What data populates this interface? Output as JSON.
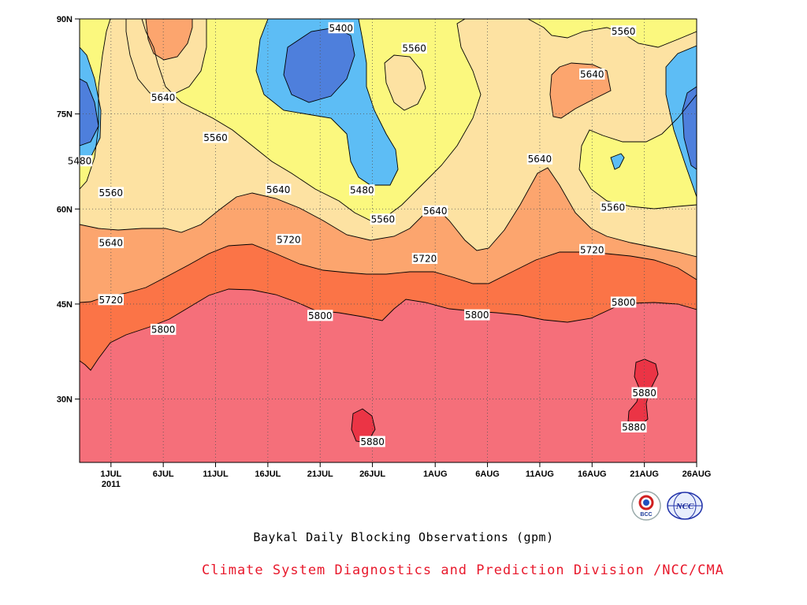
{
  "title": "Baykal Daily Blocking Observations (gpm)",
  "credit": "Climate System Diagnostics and Prediction Division /NCC/CMA",
  "logos": {
    "left": "BCC",
    "right": "NCC"
  },
  "colors": {
    "lt5400": "#4e7fdc",
    "5400_5480": "#5dbdf5",
    "5480_5560": "#fbf87e",
    "5560_5640": "#fde2a2",
    "5640_5720": "#fca56e",
    "5720_5800": "#fb7447",
    "5800_5880": "#f56f7a",
    "gt5880": "#eb3445",
    "credit": "#e8192c"
  },
  "chart_data": {
    "type": "contour",
    "title": "Baykal Daily Blocking Observations (gpm)",
    "x_axis": {
      "type": "date",
      "range": [
        "2011-06-28",
        "2011-08-26"
      ],
      "ticks": [
        {
          "date": "2011-07-01",
          "label": "1JUL",
          "sublabel": "2011"
        },
        {
          "date": "2011-07-06",
          "label": "6JUL"
        },
        {
          "date": "2011-07-11",
          "label": "11JUL"
        },
        {
          "date": "2011-07-16",
          "label": "16JUL"
        },
        {
          "date": "2011-07-21",
          "label": "21JUL"
        },
        {
          "date": "2011-07-26",
          "label": "26JUL"
        },
        {
          "date": "2011-08-01",
          "label": "1AUG"
        },
        {
          "date": "2011-08-06",
          "label": "6AUG"
        },
        {
          "date": "2011-08-11",
          "label": "11AUG"
        },
        {
          "date": "2011-08-16",
          "label": "16AUG"
        },
        {
          "date": "2011-08-21",
          "label": "21AUG"
        },
        {
          "date": "2011-08-26",
          "label": "26AUG"
        }
      ]
    },
    "y_axis": {
      "range": [
        20,
        90
      ],
      "ticks": [
        {
          "value": 30,
          "label": "30N"
        },
        {
          "value": 45,
          "label": "45N"
        },
        {
          "value": 60,
          "label": "60N"
        },
        {
          "value": 75,
          "label": "75N"
        },
        {
          "value": 90,
          "label": "90N"
        }
      ]
    },
    "grid": true,
    "contour_levels": [
      5400,
      5480,
      5560,
      5640,
      5720,
      5800,
      5880
    ],
    "contour_labels": [
      {
        "text": "5400",
        "date": "2011-07-23",
        "lat": 88.6
      },
      {
        "text": "5560",
        "date": "2011-07-30",
        "lat": 85.4
      },
      {
        "text": "5560",
        "date": "2011-08-19",
        "lat": 88.1
      },
      {
        "text": "5640",
        "date": "2011-07-06",
        "lat": 77.6
      },
      {
        "text": "5640",
        "date": "2011-08-16",
        "lat": 81.3
      },
      {
        "text": "5560",
        "date": "2011-07-11",
        "lat": 71.3
      },
      {
        "text": "5480",
        "date": "2011-06-28",
        "lat": 67.6
      },
      {
        "text": "5640",
        "date": "2011-08-11",
        "lat": 67.9
      },
      {
        "text": "5560",
        "date": "2011-07-01",
        "lat": 62.6
      },
      {
        "text": "5640",
        "date": "2011-07-17",
        "lat": 63.1
      },
      {
        "text": "5480",
        "date": "2011-07-25",
        "lat": 63.0
      },
      {
        "text": "5640",
        "date": "2011-08-01",
        "lat": 59.7
      },
      {
        "text": "5560",
        "date": "2011-07-27",
        "lat": 58.4
      },
      {
        "text": "5560",
        "date": "2011-08-18",
        "lat": 60.3
      },
      {
        "text": "5640",
        "date": "2011-07-01",
        "lat": 54.7
      },
      {
        "text": "5720",
        "date": "2011-07-18",
        "lat": 55.2
      },
      {
        "text": "5720",
        "date": "2011-07-31",
        "lat": 52.2
      },
      {
        "text": "5720",
        "date": "2011-08-16",
        "lat": 53.6
      },
      {
        "text": "5720",
        "date": "2011-07-01",
        "lat": 45.7
      },
      {
        "text": "5800",
        "date": "2011-07-06",
        "lat": 41.0
      },
      {
        "text": "5800",
        "date": "2011-07-21",
        "lat": 43.2
      },
      {
        "text": "5800",
        "date": "2011-08-05",
        "lat": 43.3
      },
      {
        "text": "5800",
        "date": "2011-08-19",
        "lat": 45.3
      },
      {
        "text": "5880",
        "date": "2011-08-21",
        "lat": 31.0
      },
      {
        "text": "5880",
        "date": "2011-08-20",
        "lat": 25.6
      },
      {
        "text": "5880",
        "date": "2011-07-26",
        "lat": 23.3
      }
    ]
  }
}
